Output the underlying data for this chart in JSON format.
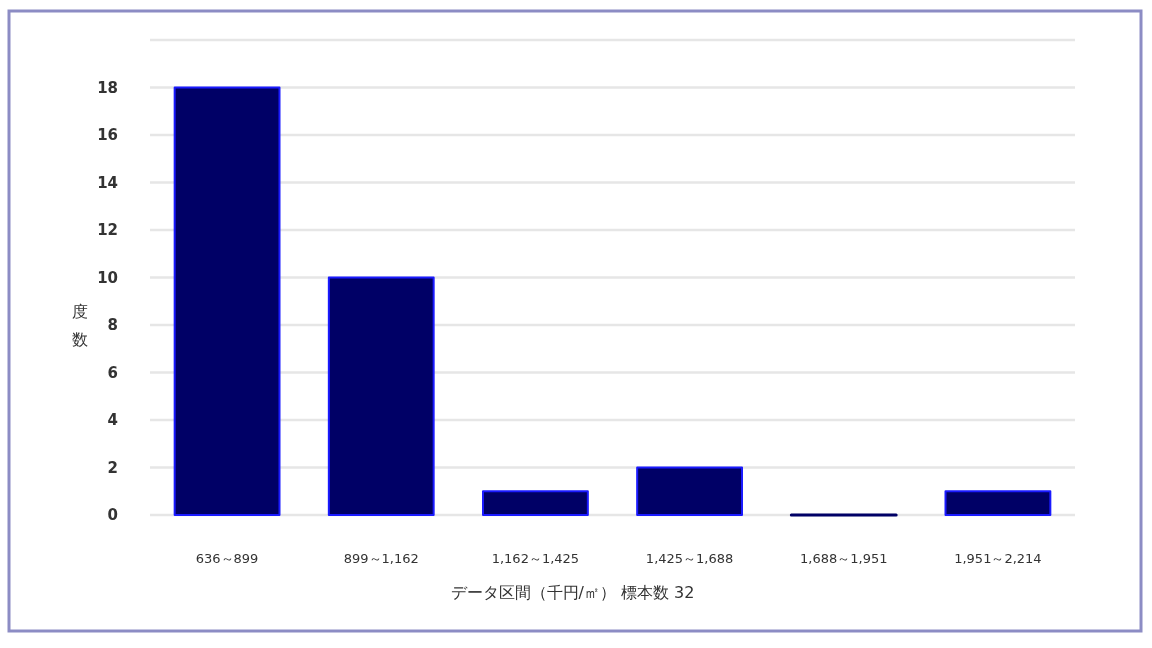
{
  "chart_data": {
    "type": "bar",
    "categories": [
      "636～899",
      "899～1,162",
      "1,162～1,425",
      "1,425～1,688",
      "1,688～1,951",
      "1,951～2,214"
    ],
    "values": [
      18,
      10,
      1,
      2,
      0,
      1
    ],
    "color": "#000066",
    "ylim": [
      0,
      20
    ],
    "yticks": [
      0,
      2,
      4,
      6,
      8,
      10,
      12,
      14,
      16,
      18,
      {
        "value": 20,
        "label": null
      }
    ],
    "grid": "y",
    "ylabel": "度数",
    "xlabel": "データ区間（千円/㎡） 標本数 32"
  }
}
